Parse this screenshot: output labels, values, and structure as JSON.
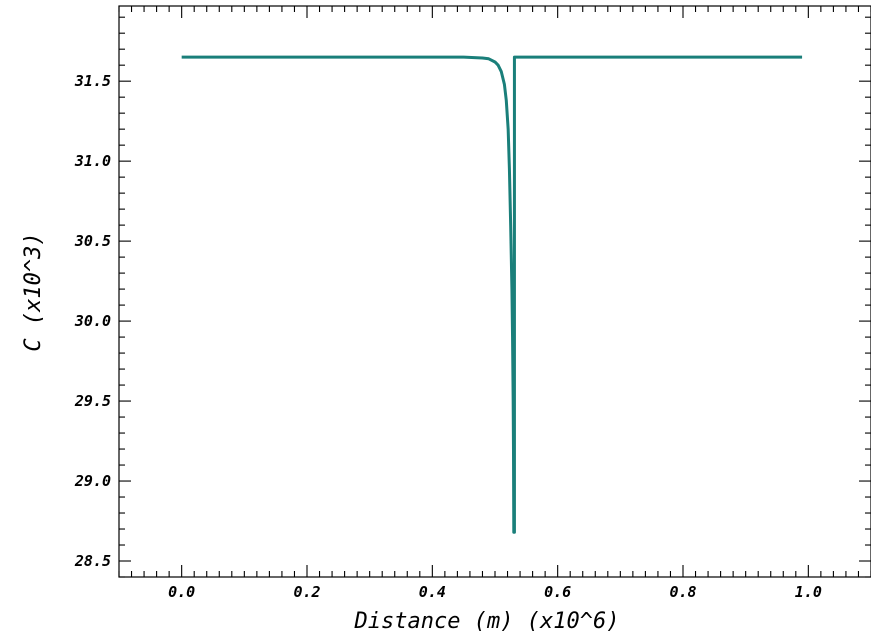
{
  "chart_data": {
    "type": "line",
    "title": "",
    "xlabel": "Distance (m) (x10^6)",
    "ylabel": "C (x10^3)",
    "xlim": [
      -0.1,
      1.1
    ],
    "ylim": [
      28.4,
      31.97
    ],
    "grid": false,
    "x_ticks": [
      0.0,
      0.2,
      0.4,
      0.6,
      0.8,
      1.0
    ],
    "x_tick_labels": [
      "0.0",
      "0.2",
      "0.4",
      "0.6",
      "0.8",
      "1.0"
    ],
    "y_ticks": [
      28.5,
      29.0,
      29.5,
      30.0,
      30.5,
      31.0,
      31.5
    ],
    "y_tick_labels": [
      "28.5",
      "29.0",
      "29.5",
      "30.0",
      "30.5",
      "31.0",
      "31.5"
    ],
    "series": [
      {
        "color": "#1a7f7a",
        "x": [
          0.0,
          0.1,
          0.2,
          0.3,
          0.4,
          0.45,
          0.48,
          0.49,
          0.5,
          0.505,
          0.51,
          0.515,
          0.518,
          0.521,
          0.523,
          0.525,
          0.527,
          0.528,
          0.529,
          0.5295,
          0.53,
          0.531,
          0.531,
          0.535,
          0.6,
          0.8,
          0.99
        ],
        "y": [
          31.65,
          31.65,
          31.65,
          31.65,
          31.65,
          31.65,
          31.645,
          31.64,
          31.62,
          31.6,
          31.56,
          31.48,
          31.38,
          31.2,
          30.95,
          30.6,
          30.2,
          29.9,
          29.5,
          29.2,
          28.68,
          28.68,
          31.65,
          31.65,
          31.65,
          31.65,
          31.65
        ]
      }
    ]
  }
}
